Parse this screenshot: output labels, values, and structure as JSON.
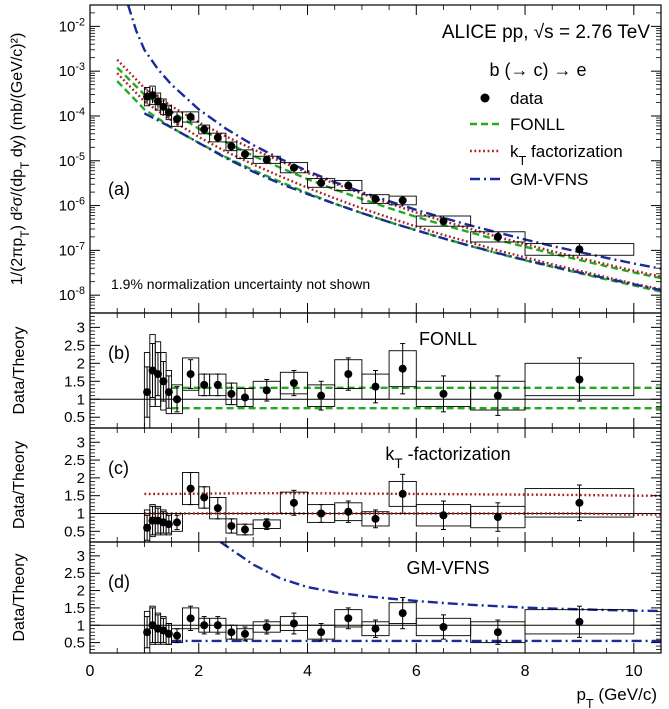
{
  "figure": {
    "title": "ALICE pp, √s = 2.76 TeV",
    "process": "b (→ c) → e",
    "xlabel": "p_T (GeV/c)",
    "xlim": [
      0,
      10.5
    ],
    "xticks": [
      "0",
      "2",
      "4",
      "6",
      "8",
      "10"
    ]
  },
  "chart_data": [
    {
      "type": "scatter",
      "panel_tag": "(a)",
      "ylabel": "1/(2πp_T) d²σ/(dp_T dy) (mb/(GeV/c)²)",
      "yscale": "log",
      "ylim": [
        4e-09,
        0.03
      ],
      "yticks": [
        "10^-8",
        "10^-7",
        "10^-6",
        "10^-5",
        "10^-4",
        "10^-3",
        "10^-2"
      ],
      "annotation": "1.9% normalization uncertainty not shown",
      "legend_placement": "top-right",
      "series": [
        {
          "name": "data",
          "style": "points",
          "color": "#000000",
          "x": [
            1.05,
            1.15,
            1.25,
            1.35,
            1.45,
            1.6,
            1.85,
            2.1,
            2.35,
            2.6,
            2.85,
            3.25,
            3.75,
            4.25,
            4.75,
            5.25,
            5.75,
            6.5,
            7.5,
            9.0
          ],
          "y": [
            0.00027,
            0.00029,
            0.00021,
            0.00016,
            0.00012,
            8.5e-05,
            9.5e-05,
            5e-05,
            3.3e-05,
            2.1e-05,
            1.4e-05,
            1.05e-05,
            7e-06,
            3.2e-06,
            2.8e-06,
            1.4e-06,
            1.3e-06,
            4.5e-07,
            2e-07,
            1.05e-07
          ],
          "xerr": [
            0.05,
            0.05,
            0.05,
            0.05,
            0.05,
            0.1,
            0.15,
            0.1,
            0.15,
            0.1,
            0.15,
            0.25,
            0.25,
            0.25,
            0.25,
            0.25,
            0.25,
            0.5,
            0.5,
            1.0
          ],
          "yerr_factor": [
            1.5,
            1.5,
            1.45,
            1.45,
            1.4,
            1.4,
            1.3,
            1.25,
            1.25,
            1.25,
            1.25,
            1.25,
            1.25,
            1.25,
            1.25,
            1.25,
            1.25,
            1.3,
            1.3,
            1.35
          ],
          "syst_factor": [
            1.6,
            1.6,
            1.55,
            1.5,
            1.45,
            1.45,
            1.3,
            1.25,
            1.25,
            1.25,
            1.25,
            1.2,
            1.3,
            1.25,
            1.3,
            1.25,
            1.25,
            1.3,
            1.3,
            1.35
          ]
        },
        {
          "name": "FONLL",
          "style": "band-dashed",
          "color": "#22aa22",
          "x": [
            0.5,
            1,
            1.5,
            2,
            2.5,
            3,
            3.5,
            4,
            4.5,
            5,
            5.5,
            6,
            6.5,
            7,
            7.5,
            8,
            8.5,
            9,
            9.5,
            10,
            10.5
          ],
          "upper": [
            0.0012,
            0.0003,
            0.000125,
            5.2e-05,
            2.6e-05,
            1.3e-05,
            7e-06,
            3.9e-06,
            2.3e-06,
            1.4e-06,
            8.8e-07,
            5.6e-07,
            3.7e-07,
            2.5e-07,
            1.7e-07,
            1.2e-07,
            8.5e-08,
            6.1e-08,
            4.4e-08,
            3.2e-08,
            2.4e-08
          ],
          "lower": [
            0.0006,
            0.00014,
            5.5e-05,
            2.5e-05,
            1.2e-05,
            6.2e-06,
            3.4e-06,
            1.9e-06,
            1.1e-06,
            6.8e-07,
            4.3e-07,
            2.8e-07,
            1.85e-07,
            1.25e-07,
            8.5e-08,
            6e-08,
            4.3e-08,
            3.1e-08,
            2.25e-08,
            1.65e-08,
            1.2e-08
          ]
        },
        {
          "name": "k_T factorization",
          "style": "band-dotted",
          "color": "#aa2222",
          "x": [
            0.5,
            1,
            1.5,
            2,
            2.5,
            3,
            3.5,
            4,
            4.5,
            5,
            5.5,
            6,
            6.5,
            7,
            7.5,
            8,
            8.5,
            9,
            9.5,
            10,
            10.5
          ],
          "upper": [
            0.0018,
            0.00042,
            0.000165,
            7.2e-05,
            3.5e-05,
            1.8e-05,
            9.8e-06,
            5.4e-06,
            3.1e-06,
            1.85e-06,
            1.12e-06,
            7e-07,
            4.5e-07,
            3e-07,
            2e-07,
            1.38e-07,
            9.6e-08,
            6.8e-08,
            4.9e-08,
            3.5e-08,
            2.6e-08
          ],
          "lower": [
            0.0009,
            0.00021,
            8e-05,
            3.4e-05,
            1.6e-05,
            8.3e-06,
            4.5e-06,
            2.5e-06,
            1.45e-06,
            8.7e-07,
            5.4e-07,
            3.4e-07,
            2.2e-07,
            1.5e-07,
            1e-07,
            7e-08,
            4.9e-08,
            3.5e-08,
            2.5e-08,
            1.8e-08,
            1.35e-08
          ]
        },
        {
          "name": "GM-VFNS",
          "style": "band-dashdot",
          "color": "#1a2a99",
          "x": [
            0.7,
            0.85,
            1,
            1.25,
            1.5,
            2,
            2.5,
            3,
            3.5,
            4,
            4.5,
            5,
            5.5,
            6,
            6.5,
            7,
            7.5,
            8,
            8.5,
            9,
            9.5,
            10,
            10.5
          ],
          "upper": [
            0.03,
            0.008,
            0.003,
            0.0011,
            0.0005,
            0.00014,
            5.2e-05,
            2.25e-05,
            1.1e-05,
            5.9e-06,
            3.35e-06,
            2e-06,
            1.25e-06,
            8e-07,
            5.3e-07,
            3.6e-07,
            2.5e-07,
            1.75e-07,
            1.25e-07,
            9.2e-08,
            6.8e-08,
            5.1e-08,
            3.9e-08
          ],
          "x_lower": [
            1,
            1.5,
            2,
            2.5,
            3,
            3.5,
            4,
            4.5,
            5,
            5.5,
            6,
            6.5,
            7,
            7.5,
            8,
            8.5,
            9,
            9.5,
            10,
            10.5
          ],
          "lower": [
            0.000115,
            5.5e-05,
            2.5e-05,
            1.15e-05,
            5.7e-06,
            3.1e-06,
            1.8e-06,
            1.1e-06,
            6.8e-07,
            4.3e-07,
            2.8e-07,
            1.85e-07,
            1.25e-07,
            8.7e-08,
            6.1e-08,
            4.4e-08,
            3.2e-08,
            2.35e-08,
            1.75e-08,
            1.3e-08
          ]
        }
      ]
    },
    {
      "type": "scatter",
      "panel_tag": "(b)",
      "label": "FONLL",
      "ylabel": "Data/Theory",
      "ylim": [
        0.2,
        3.4
      ],
      "yticks": [
        "0.5",
        "1",
        "1.5",
        "2",
        "2.5",
        "3"
      ],
      "reference_line": 1,
      "band": {
        "style": "dashed",
        "color": "#22aa22",
        "x": [
          1.5,
          10.5
        ],
        "upper": [
          1.32,
          1.32
        ],
        "lower": [
          0.75,
          0.75
        ]
      },
      "points": {
        "x": [
          1.05,
          1.15,
          1.25,
          1.35,
          1.45,
          1.6,
          1.85,
          2.1,
          2.35,
          2.6,
          2.85,
          3.25,
          3.75,
          4.25,
          4.75,
          5.25,
          5.75,
          6.5,
          7.5,
          9.0
        ],
        "y": [
          1.2,
          1.8,
          1.7,
          1.5,
          1.2,
          1.0,
          1.7,
          1.4,
          1.4,
          1.15,
          1.05,
          1.25,
          1.45,
          1.1,
          1.7,
          1.35,
          1.85,
          1.15,
          1.1,
          1.55
        ],
        "xerr": [
          0.05,
          0.05,
          0.05,
          0.05,
          0.05,
          0.1,
          0.15,
          0.1,
          0.15,
          0.1,
          0.15,
          0.25,
          0.25,
          0.25,
          0.25,
          0.25,
          0.25,
          0.5,
          0.5,
          1.0
        ],
        "yerr": [
          0.7,
          0.75,
          0.6,
          0.55,
          0.45,
          0.35,
          0.4,
          0.3,
          0.3,
          0.3,
          0.25,
          0.3,
          0.35,
          0.4,
          0.45,
          0.45,
          0.7,
          0.5,
          0.55,
          0.6
        ],
        "syst": [
          1.1,
          1.0,
          0.9,
          0.8,
          0.6,
          0.4,
          0.45,
          0.3,
          0.3,
          0.3,
          0.25,
          0.25,
          0.3,
          0.3,
          0.4,
          0.35,
          0.5,
          0.35,
          0.4,
          0.45
        ]
      }
    },
    {
      "type": "scatter",
      "panel_tag": "(c)",
      "label": "k_T -factorization",
      "ylabel": "Data/Theory",
      "ylim": [
        0.2,
        3.4
      ],
      "yticks": [
        "0.5",
        "1",
        "1.5",
        "2",
        "2.5",
        "3"
      ],
      "reference_line": 1,
      "band": {
        "style": "dotted",
        "color": "#aa2222",
        "x": [
          1.0,
          1.5,
          2,
          3,
          4,
          5,
          6,
          7,
          8,
          9,
          10,
          10.5
        ],
        "upper": [
          1.55,
          1.55,
          1.56,
          1.57,
          1.57,
          1.56,
          1.55,
          1.54,
          1.53,
          1.52,
          1.5,
          1.5
        ],
        "lower": [
          1.0,
          1.0,
          1.0,
          1.0,
          1.0,
          1.0,
          1.0,
          1.0,
          1.0,
          1.0,
          0.97,
          0.97
        ]
      },
      "points": {
        "x": [
          1.05,
          1.15,
          1.25,
          1.35,
          1.45,
          1.6,
          1.85,
          2.1,
          2.35,
          2.6,
          2.85,
          3.25,
          3.75,
          4.25,
          4.75,
          5.25,
          5.75,
          6.5,
          7.5,
          9.0
        ],
        "y": [
          0.6,
          0.8,
          0.8,
          0.75,
          0.7,
          0.75,
          1.7,
          1.45,
          1.15,
          0.65,
          0.55,
          0.7,
          1.3,
          1.0,
          1.05,
          0.85,
          1.55,
          0.95,
          0.9,
          1.3
        ],
        "xerr": [
          0.05,
          0.05,
          0.05,
          0.05,
          0.05,
          0.1,
          0.15,
          0.1,
          0.15,
          0.1,
          0.15,
          0.25,
          0.25,
          0.25,
          0.25,
          0.25,
          0.25,
          0.5,
          0.5,
          1.0
        ],
        "yerr": [
          0.35,
          0.4,
          0.35,
          0.3,
          0.25,
          0.2,
          0.45,
          0.3,
          0.3,
          0.2,
          0.15,
          0.15,
          0.35,
          0.25,
          0.3,
          0.25,
          0.55,
          0.4,
          0.4,
          0.5
        ],
        "syst": [
          0.5,
          0.45,
          0.4,
          0.35,
          0.3,
          0.25,
          0.45,
          0.3,
          0.3,
          0.2,
          0.15,
          0.12,
          0.3,
          0.25,
          0.25,
          0.2,
          0.35,
          0.3,
          0.3,
          0.4
        ]
      }
    },
    {
      "type": "scatter",
      "panel_tag": "(d)",
      "label": "GM-VFNS",
      "ylabel": "Data/Theory",
      "ylim": [
        0.2,
        3.4
      ],
      "yticks": [
        "0.5",
        "1",
        "1.5",
        "2",
        "2.5",
        "3"
      ],
      "reference_line": 1,
      "band": {
        "style": "dashdot",
        "color": "#1a2a99",
        "x": [
          2.4,
          3,
          3.5,
          4,
          4.5,
          5,
          5.5,
          6,
          6.5,
          7,
          7.5,
          8,
          8.5,
          9,
          9.5,
          10,
          10.5
        ],
        "upper": [
          3.4,
          2.75,
          2.35,
          2.1,
          1.95,
          1.85,
          1.77,
          1.7,
          1.64,
          1.59,
          1.55,
          1.51,
          1.48,
          1.46,
          1.44,
          1.42,
          1.41
        ],
        "x_lower": [
          1.5,
          2,
          3,
          4,
          5,
          6,
          7,
          8,
          9,
          10,
          10.5
        ],
        "lower": [
          0.55,
          0.55,
          0.55,
          0.55,
          0.55,
          0.55,
          0.55,
          0.55,
          0.55,
          0.55,
          0.55
        ]
      },
      "points": {
        "x": [
          1.05,
          1.15,
          1.25,
          1.35,
          1.45,
          1.6,
          1.85,
          2.1,
          2.35,
          2.6,
          2.85,
          3.25,
          3.75,
          4.25,
          4.75,
          5.25,
          5.75,
          6.5,
          7.5,
          9.0
        ],
        "y": [
          0.8,
          1.0,
          0.9,
          0.85,
          0.75,
          0.7,
          1.2,
          1.0,
          1.0,
          0.8,
          0.75,
          0.95,
          1.05,
          0.8,
          1.2,
          0.9,
          1.35,
          0.95,
          0.8,
          1.1
        ],
        "xerr": [
          0.05,
          0.05,
          0.05,
          0.05,
          0.05,
          0.1,
          0.15,
          0.1,
          0.15,
          0.1,
          0.15,
          0.25,
          0.25,
          0.25,
          0.25,
          0.25,
          0.25,
          0.5,
          0.5,
          1.0
        ],
        "yerr": [
          0.45,
          0.5,
          0.4,
          0.35,
          0.3,
          0.2,
          0.35,
          0.25,
          0.25,
          0.2,
          0.2,
          0.2,
          0.3,
          0.25,
          0.3,
          0.25,
          0.45,
          0.35,
          0.35,
          0.45
        ],
        "syst": [
          0.6,
          0.55,
          0.45,
          0.4,
          0.3,
          0.2,
          0.3,
          0.2,
          0.2,
          0.2,
          0.15,
          0.15,
          0.2,
          0.2,
          0.25,
          0.2,
          0.3,
          0.25,
          0.3,
          0.35
        ]
      }
    }
  ]
}
